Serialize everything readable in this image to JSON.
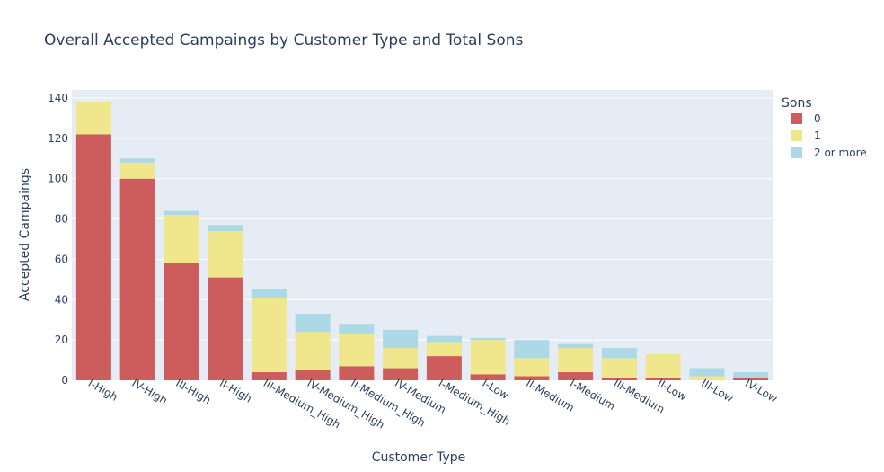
{
  "chart_data": {
    "type": "bar",
    "stacked": true,
    "title": "Overall Accepted Campaings by Customer Type and Total Sons",
    "xlabel": "Customer Type",
    "ylabel": "Accepted Campaings",
    "ylim": [
      0,
      144
    ],
    "yticks": [
      0,
      20,
      40,
      60,
      80,
      100,
      120,
      140
    ],
    "grid": true,
    "legend_title": "Sons",
    "legend_position": "top-right",
    "categories": [
      "I-High",
      "IV-High",
      "III-High",
      "II-High",
      "III-Medium_High",
      "IV-Medium_High",
      "II-Medium_High",
      "IV-Medium",
      "I-Medium_High",
      "I-Low",
      "II-Medium",
      "I-Medium",
      "III-Medium",
      "II-Low",
      "III-Low",
      "IV-Low"
    ],
    "series": [
      {
        "name": "0",
        "color": "#cd5c5c",
        "values": [
          122,
          100,
          58,
          51,
          4,
          5,
          7,
          6,
          12,
          3,
          2,
          4,
          1,
          1,
          0,
          1
        ]
      },
      {
        "name": "1",
        "color": "#f0e68c",
        "values": [
          16,
          8,
          24,
          23,
          37,
          19,
          16,
          10,
          7,
          17,
          9,
          12,
          10,
          12,
          2,
          0
        ]
      },
      {
        "name": "2 or more",
        "color": "#add8e6",
        "values": [
          0,
          2,
          2,
          3,
          4,
          9,
          5,
          9,
          3,
          1,
          9,
          2,
          5,
          0,
          4,
          3
        ]
      }
    ]
  }
}
